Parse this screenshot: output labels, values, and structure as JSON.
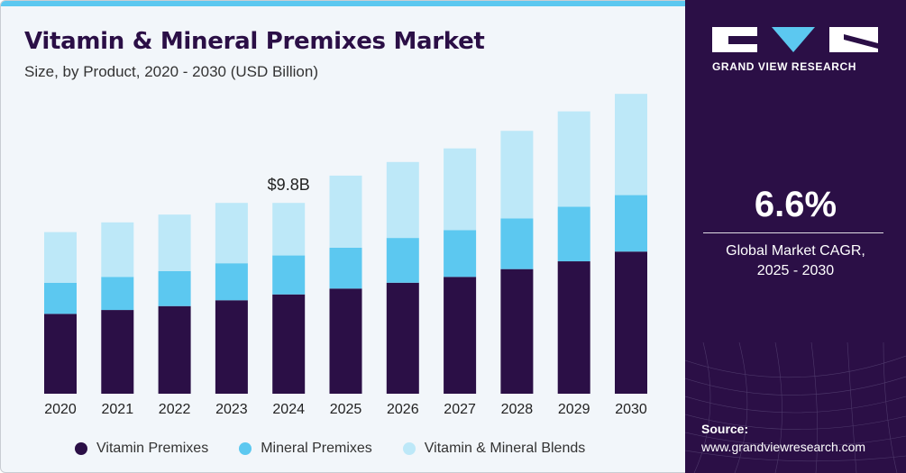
{
  "header": {
    "title": "Vitamin & Mineral Premixes Market",
    "subtitle": "Size, by Product, 2020 - 2030 (USD Billion)"
  },
  "chart_data": {
    "type": "bar",
    "stacked": true,
    "categories": [
      "2020",
      "2021",
      "2022",
      "2023",
      "2024",
      "2025",
      "2026",
      "2027",
      "2028",
      "2029",
      "2030"
    ],
    "series": [
      {
        "name": "Vitamin Premixes",
        "color": "#2b0f46",
        "values": [
          4.1,
          4.3,
          4.5,
          4.8,
          5.1,
          5.4,
          5.7,
          6.0,
          6.4,
          6.8,
          7.3
        ]
      },
      {
        "name": "Mineral Premixes",
        "color": "#5cc8f0",
        "values": [
          1.6,
          1.7,
          1.8,
          1.9,
          2.0,
          2.1,
          2.3,
          2.4,
          2.6,
          2.8,
          2.9
        ]
      },
      {
        "name": "Vitamin & Mineral Blends",
        "color": "#bde8f8",
        "values": [
          2.6,
          2.8,
          2.9,
          3.1,
          2.7,
          3.7,
          3.9,
          4.2,
          4.5,
          4.9,
          5.2
        ]
      }
    ],
    "annotation": {
      "category": "2024",
      "label": "$9.8B"
    },
    "ylim": [
      0,
      15.5
    ],
    "grid": false,
    "legend_position": "bottom"
  },
  "sidebar": {
    "brand_name": "GRAND VIEW RESEARCH",
    "cagr_value": "6.6%",
    "cagr_label_line1": "Global Market CAGR,",
    "cagr_label_line2": "2025 - 2030",
    "source_label": "Source:",
    "source_url": "www.grandviewresearch.com"
  }
}
